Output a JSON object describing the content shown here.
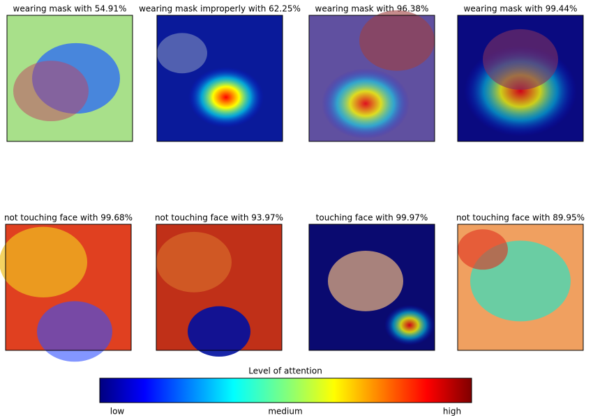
{
  "panels": [
    {
      "title": "wearing mask with 54.91%"
    },
    {
      "title": "wearing mask improperly with 62.25%"
    },
    {
      "title": "wearing mask with 96.38%"
    },
    {
      "title": "wearing mask with 99.44%"
    },
    {
      "title": "not touching face with 99.68%"
    },
    {
      "title": "not touching face with 93.97%"
    },
    {
      "title": "touching face with 99.97%"
    },
    {
      "title": "not touching face with 89.95%"
    }
  ],
  "colorbar": {
    "label": "Level of attention",
    "ticks": [
      "low",
      "medium",
      "high"
    ]
  }
}
